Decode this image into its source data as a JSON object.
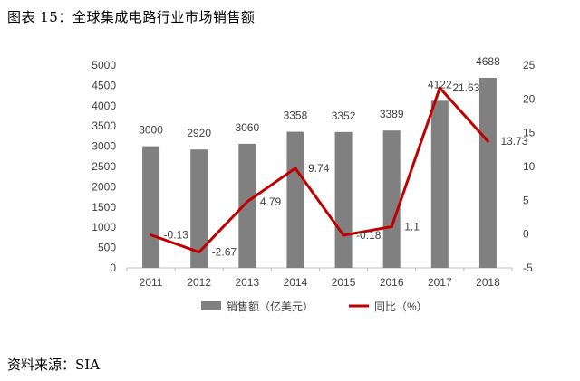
{
  "figure": {
    "title": "图表 15：全球集成电路行业市场销售额",
    "source": "资料来源：SIA"
  },
  "chart_data": {
    "type": "bar",
    "categories": [
      "2011",
      "2012",
      "2013",
      "2014",
      "2015",
      "2016",
      "2017",
      "2018"
    ],
    "series": [
      {
        "name": "销售额（亿美元）",
        "type": "bar",
        "axis": "left",
        "values": [
          3000,
          2920,
          3060,
          3358,
          3352,
          3389,
          4122,
          4688
        ],
        "labels": [
          "3000",
          "2920",
          "3060",
          "3358",
          "3352",
          "3389",
          "4122",
          "4688"
        ]
      },
      {
        "name": "同比（%）",
        "type": "line",
        "axis": "right",
        "values": [
          -0.13,
          -2.67,
          4.79,
          9.74,
          -0.18,
          1.1,
          21.63,
          13.73
        ],
        "labels": [
          "-0.13",
          "-2.67",
          "4.79",
          "9.74",
          "-0.18",
          "1.1",
          "21.63",
          "13.73"
        ]
      }
    ],
    "y_left": {
      "min": 0,
      "max": 5000,
      "step": 500,
      "ticks": [
        "0",
        "500",
        "1000",
        "1500",
        "2000",
        "2500",
        "3000",
        "3500",
        "4000",
        "4500",
        "5000"
      ]
    },
    "y_right": {
      "min": -5,
      "max": 25,
      "step": 5,
      "ticks": [
        "-5",
        "0",
        "5",
        "10",
        "15",
        "20",
        "25"
      ]
    },
    "legend_position": "bottom",
    "grid": false,
    "colors": {
      "bar": "#808080",
      "line": "#c00000",
      "axis": "#bfbfbf",
      "text": "#404040"
    }
  }
}
